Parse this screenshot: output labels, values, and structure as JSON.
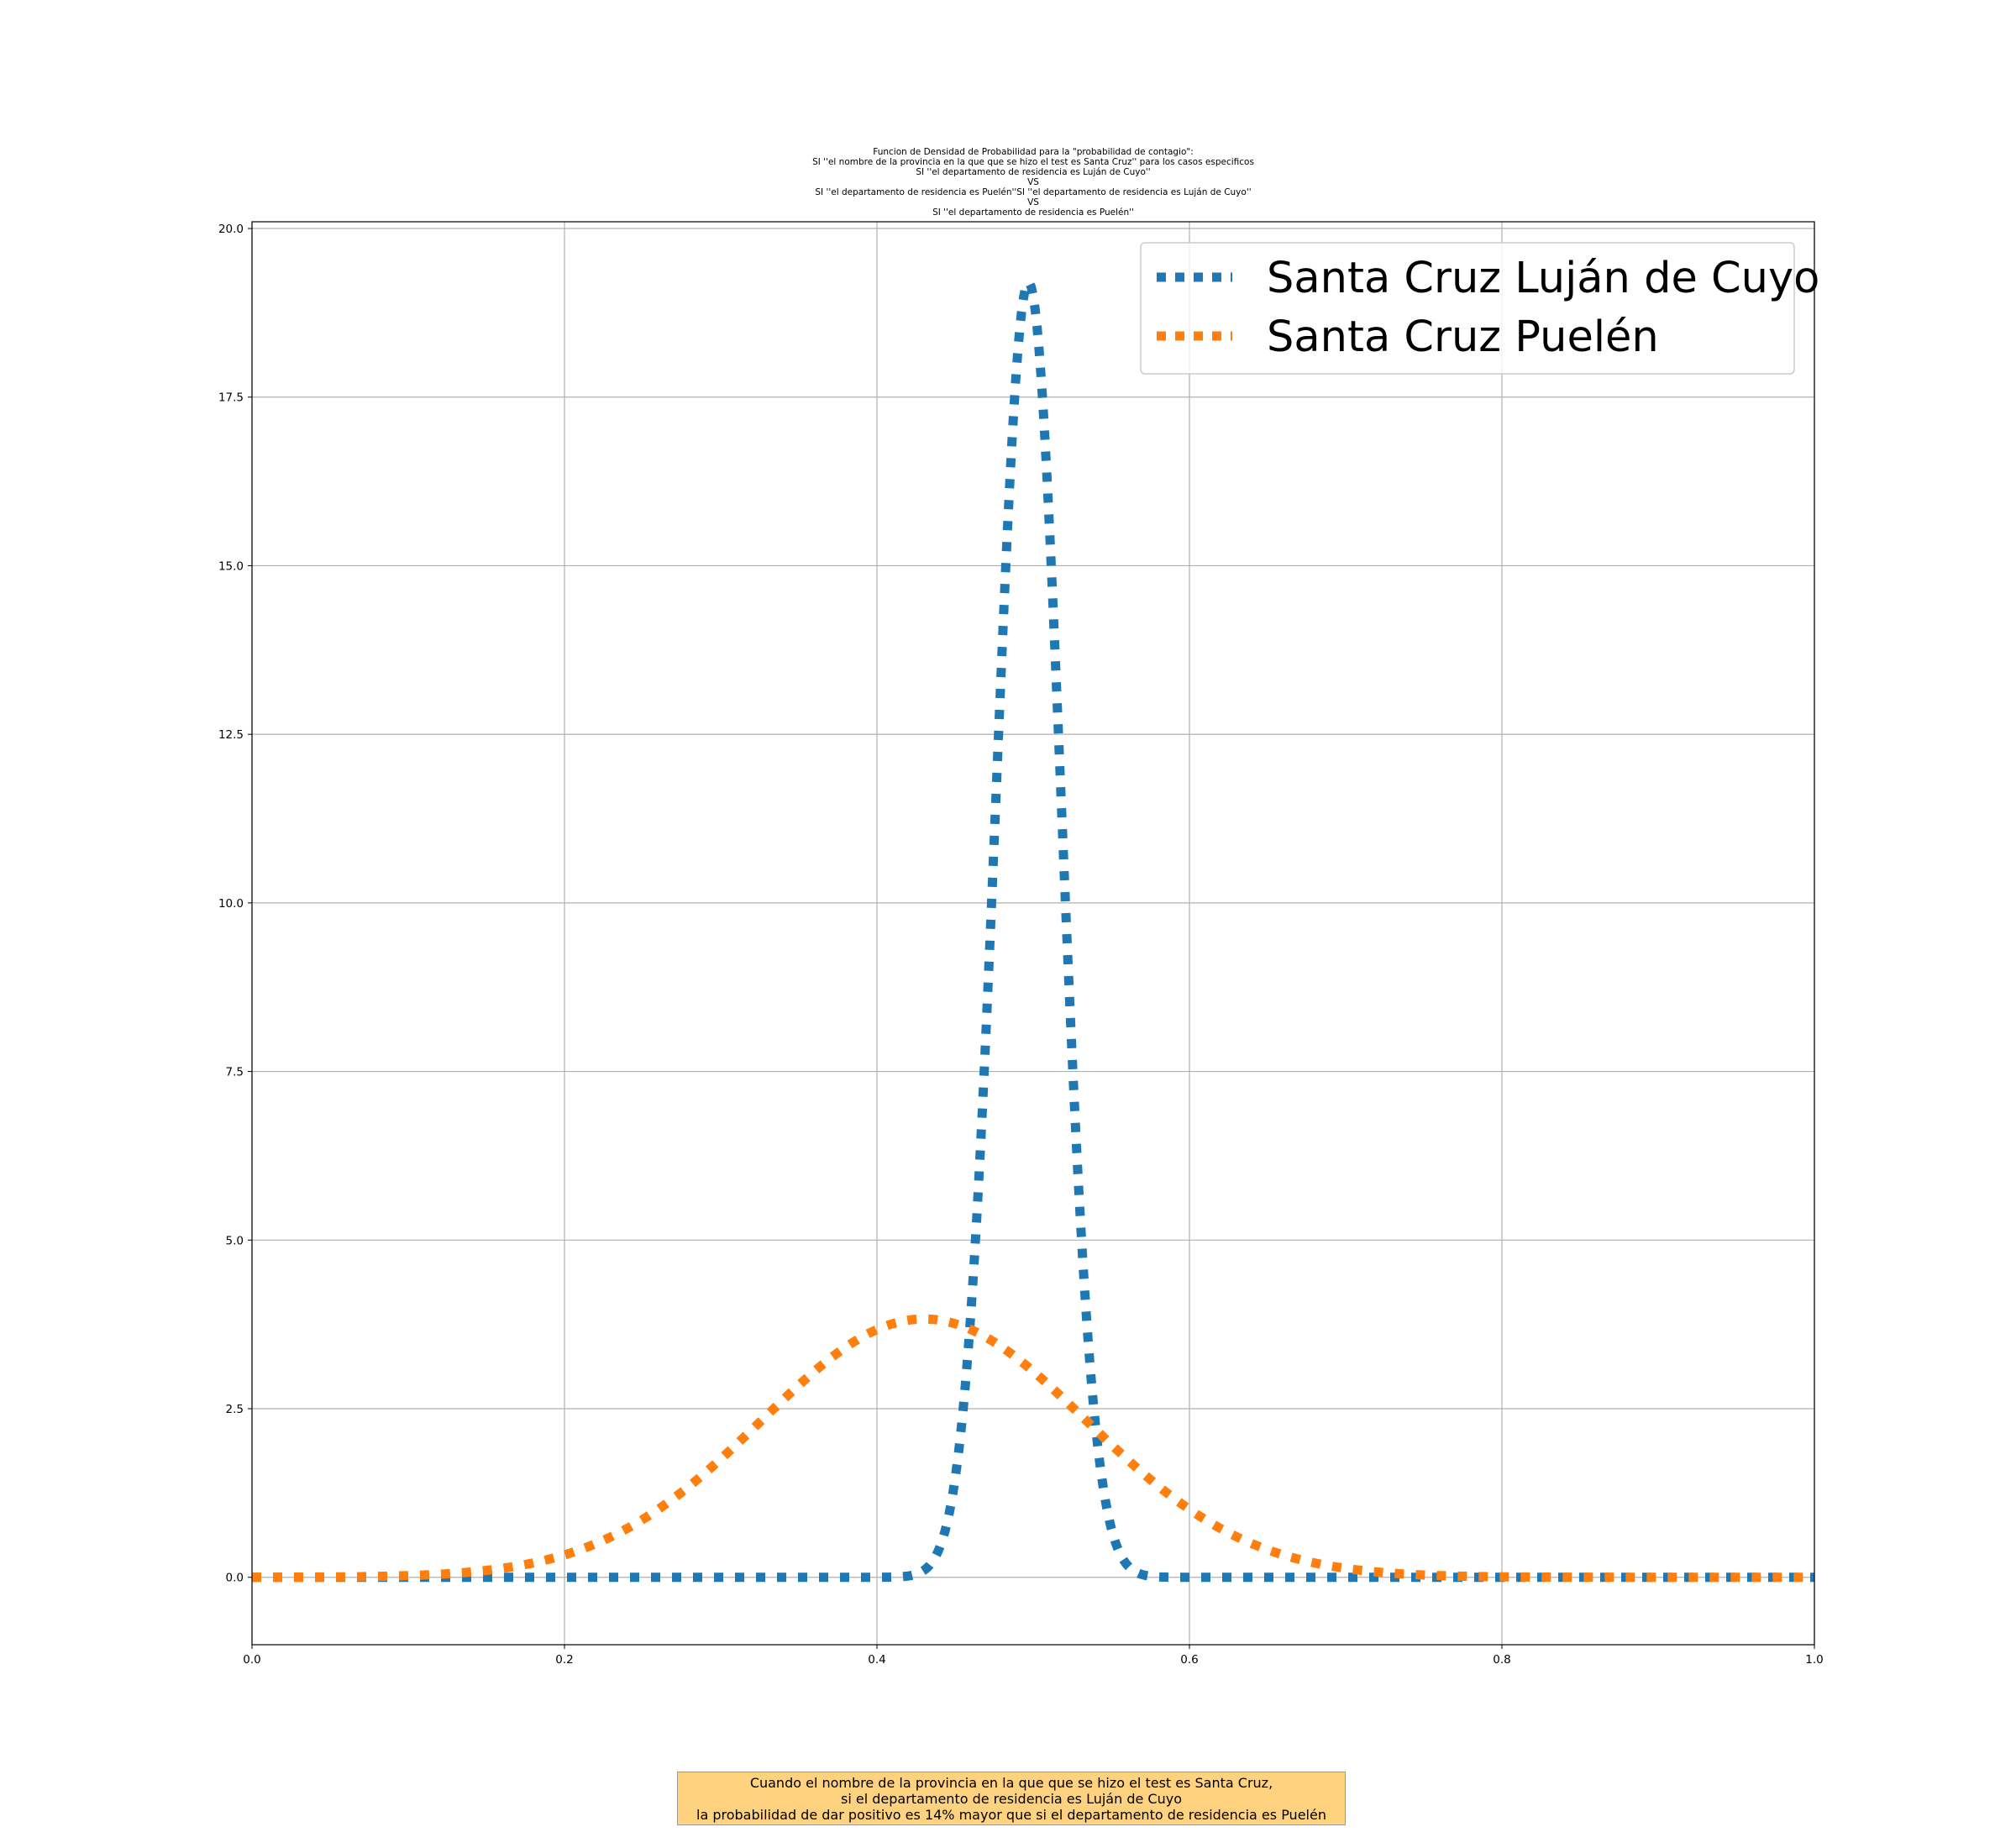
{
  "chart_data": {
    "type": "line",
    "title_lines": [
      "Funcion de Densidad de Probabilidad para la \"probabilidad de contagio\":",
      "SI ''el nombre de la provincia en la que que se hizo el test es Santa Cruz'' para los casos especificos",
      "SI ''el departamento de residencia es Luján de Cuyo''",
      "VS",
      "SI ''el departamento de residencia es Puelén''SI ''el departamento de residencia es Luján de Cuyo''",
      "VS",
      "SI ''el departamento de residencia es Puelén''"
    ],
    "xlim": [
      0.0,
      1.0
    ],
    "ylim": [
      -1.0,
      20.1
    ],
    "x_ticks": [
      "0.0",
      "0.2",
      "0.4",
      "0.6",
      "0.8",
      "1.0"
    ],
    "y_ticks": [
      "0.0",
      "2.5",
      "5.0",
      "7.5",
      "10.0",
      "12.5",
      "15.0",
      "17.5",
      "20.0"
    ],
    "grid": true,
    "legend_position": "top-right",
    "series": [
      {
        "name": "Santa Cruz Luján de Cuyo",
        "color": "#1f77b4",
        "style": "dotted",
        "mean": 0.497,
        "sd": 0.0207,
        "peak": 19.2
      },
      {
        "name": "Santa Cruz Puelén",
        "color": "#ff7f0e",
        "style": "dotted",
        "mean": 0.43,
        "sd": 0.104,
        "peak": 3.83
      }
    ]
  },
  "annotation": {
    "lines": [
      "Cuando el nombre de la provincia en la que que se hizo el test es Santa Cruz,",
      "si el departamento de residencia es Luján de Cuyo",
      "la probabilidad de dar positivo es 14% mayor que si el departamento de residencia es Puelén"
    ],
    "background": "#ffd280"
  }
}
